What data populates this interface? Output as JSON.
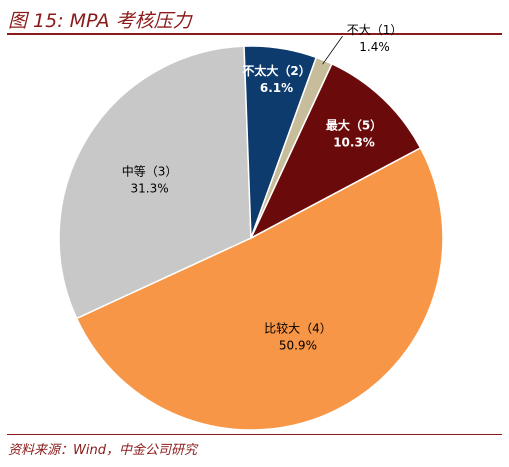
{
  "title": "图 15: MPA 考核压力",
  "source": "资料来源：Wind，中金公司研究",
  "chart_data": {
    "type": "pie",
    "title": "图 15: MPA 考核压力",
    "slices": [
      {
        "label": "比较大（4）",
        "pct_label": "50.9%",
        "value": 50.9,
        "color": "#f79646",
        "label_color": "#000000"
      },
      {
        "label": "中等（3）",
        "pct_label": "31.3%",
        "value": 31.3,
        "color": "#c8c8c8",
        "label_color": "#000000"
      },
      {
        "label": "不太大（2）",
        "pct_label": "6.1%",
        "value": 6.1,
        "color": "#0e3b6e",
        "label_color": "#ffffff"
      },
      {
        "label": "不大（1）",
        "pct_label": "1.4%",
        "value": 1.4,
        "color": "#c7bd9a",
        "label_color": "#000000"
      },
      {
        "label": "最大（5）",
        "pct_label": "10.3%",
        "value": 10.3,
        "color": "#6b0a0a",
        "label_color": "#ffffff"
      }
    ]
  }
}
